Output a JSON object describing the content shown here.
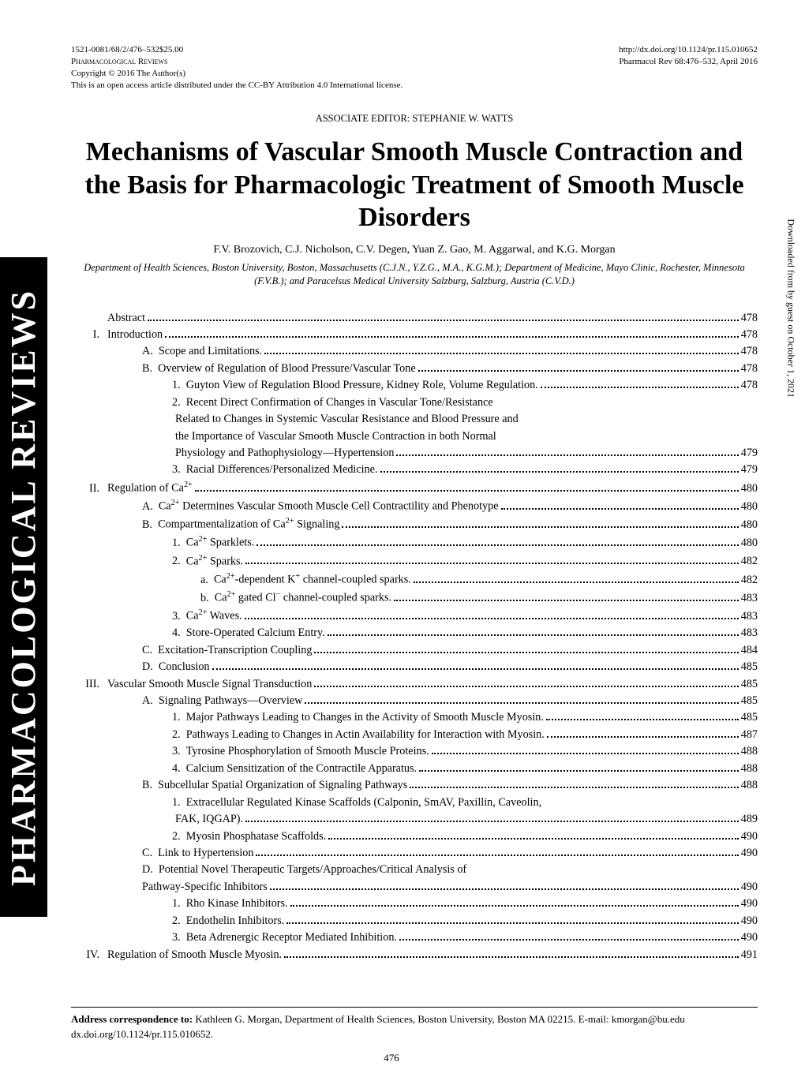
{
  "header": {
    "left_line1": "1521-0081/68/2/476–532$25.00",
    "left_line2": "Pharmacological Reviews",
    "left_line3": "Copyright © 2016 The Author(s)",
    "left_line4": "This is an open access article distributed under the CC-BY Attribution 4.0 International license.",
    "right_line1": "http://dx.doi.org/10.1124/pr.115.010652",
    "right_line2": "Pharmacol Rev 68:476–532, April 2016"
  },
  "sidebar_text": "PHARMACOLOGICAL REVIEWS",
  "right_margin_note": "Downloaded from by guest on October 1, 2021",
  "assoc_editor": "ASSOCIATE EDITOR: STEPHANIE W. WATTS",
  "title": "Mechanisms of Vascular Smooth Muscle Contraction and the Basis for Pharmacologic Treatment of Smooth Muscle Disorders",
  "authors": "F.V. Brozovich, C.J. Nicholson, C.V. Degen, Yuan Z. Gao, M. Aggarwal, and K.G. Morgan",
  "affiliations": "Department of Health Sciences, Boston University, Boston, Massachusetts (C.J.N., Y.Z.G., M.A., K.G.M.); Department of Medicine, Mayo Clinic, Rochester, Minnesota (F.V.B.); and Paracelsus Medical University Salzburg, Salzburg, Austria (C.V.D.)",
  "toc": [
    {
      "level": 1,
      "roman": "",
      "label": "",
      "text": "Abstract",
      "page": "478"
    },
    {
      "level": 1,
      "roman": "I.",
      "label": "",
      "text": "Introduction",
      "page": "478"
    },
    {
      "level": 2,
      "label": "A.",
      "text": "Scope and Limitations.",
      "page": "478"
    },
    {
      "level": 2,
      "label": "B.",
      "text": "Overview of Regulation of Blood Pressure/Vascular Tone",
      "page": "478"
    },
    {
      "level": 3,
      "label": "1.",
      "text": "Guyton View of Regulation Blood Pressure, Kidney Role, Volume Regulation.",
      "page": "478"
    },
    {
      "level": 3,
      "label": "2.",
      "text": "Recent Direct Confirmation of Changes in Vascular Tone/Resistance",
      "cont": [
        "Related to Changes in Systemic Vascular Resistance and Blood Pressure and",
        "the Importance of Vascular Smooth Muscle Contraction in both Normal",
        "Physiology and Pathophysiology—Hypertension"
      ],
      "page": "479"
    },
    {
      "level": 3,
      "label": "3.",
      "text": "Racial Differences/Personalized Medicine.",
      "page": "479"
    },
    {
      "level": 1,
      "roman": "II.",
      "label": "",
      "text_html": "Regulation of Ca<sup>2+</sup>",
      "page": "480"
    },
    {
      "level": 2,
      "label": "A.",
      "text_html": "Ca<sup>2+</sup> Determines Vascular Smooth Muscle Cell Contractility and Phenotype",
      "page": "480"
    },
    {
      "level": 2,
      "label": "B.",
      "text_html": "Compartmentalization of Ca<sup>2+</sup> Signaling",
      "page": "480"
    },
    {
      "level": 3,
      "label": "1.",
      "text_html": "Ca<sup>2+</sup> Sparklets.",
      "page": "480"
    },
    {
      "level": 3,
      "label": "2.",
      "text_html": "Ca<sup>2+</sup> Sparks.",
      "page": "482"
    },
    {
      "level": 4,
      "label": "a.",
      "text_html": "Ca<sup>2+</sup>-dependent K<sup>+</sup> channel-coupled sparks.",
      "page": "482"
    },
    {
      "level": 4,
      "label": "b.",
      "text_html": "Ca<sup>2+</sup> gated Cl<sup>−</sup> channel-coupled sparks.",
      "page": "483"
    },
    {
      "level": 3,
      "label": "3.",
      "text_html": "Ca<sup>2+</sup> Waves.",
      "page": "483"
    },
    {
      "level": 3,
      "label": "4.",
      "text": "Store-Operated Calcium Entry.",
      "page": "483"
    },
    {
      "level": 2,
      "label": "C.",
      "text": "Excitation-Transcription Coupling",
      "page": "484"
    },
    {
      "level": 2,
      "label": "D.",
      "text": "Conclusion",
      "page": "485"
    },
    {
      "level": 1,
      "roman": "III.",
      "label": "",
      "text": "Vascular Smooth Muscle Signal Transduction",
      "page": "485"
    },
    {
      "level": 2,
      "label": "A.",
      "text": "Signaling Pathways—Overview",
      "page": "485"
    },
    {
      "level": 3,
      "label": "1.",
      "text": "Major Pathways Leading to Changes in the Activity of Smooth Muscle Myosin.",
      "page": "485"
    },
    {
      "level": 3,
      "label": "2.",
      "text": "Pathways Leading to Changes in Actin Availability for Interaction with Myosin.",
      "page": "487"
    },
    {
      "level": 3,
      "label": "3.",
      "text": "Tyrosine Phosphorylation of Smooth Muscle Proteins.",
      "page": "488"
    },
    {
      "level": 3,
      "label": "4.",
      "text": "Calcium Sensitization of the Contractile Apparatus.",
      "page": "488"
    },
    {
      "level": 2,
      "label": "B.",
      "text": "Subcellular Spatial Organization of Signaling Pathways",
      "page": "488"
    },
    {
      "level": 3,
      "label": "1.",
      "text": "Extracellular Regulated Kinase Scaffolds (Calponin, SmAV, Paxillin, Caveolin,",
      "cont": [
        "FAK, IQGAP)."
      ],
      "page": "489"
    },
    {
      "level": 3,
      "label": "2.",
      "text": "Myosin Phosphatase Scaffolds.",
      "page": "490"
    },
    {
      "level": 2,
      "label": "C.",
      "text": "Link to Hypertension",
      "page": "490"
    },
    {
      "level": 2,
      "label": "D.",
      "text": "Potential Novel Therapeutic Targets/Approaches/Critical Analysis of",
      "cont": [
        "Pathway-Specific Inhibitors"
      ],
      "contIndent": "ind-2",
      "page": "490"
    },
    {
      "level": 3,
      "label": "1.",
      "text": "Rho Kinase Inhibitors.",
      "page": "490"
    },
    {
      "level": 3,
      "label": "2.",
      "text": "Endothelin Inhibitors.",
      "page": "490"
    },
    {
      "level": 3,
      "label": "3.",
      "text": "Beta Adrenergic Receptor Mediated Inhibition.",
      "page": "490"
    },
    {
      "level": 1,
      "roman": "IV.",
      "label": "",
      "text": "Regulation of Smooth Muscle Myosin.",
      "page": "491"
    }
  ],
  "footer": {
    "correspondence_label": "Address correspondence to:",
    "correspondence_text": " Kathleen G. Morgan, Department of Health Sciences, Boston University, Boston MA 02215. E-mail: kmorgan@bu.edu",
    "doi": "dx.doi.org/10.1124/pr.115.010652."
  },
  "page_number": "476"
}
